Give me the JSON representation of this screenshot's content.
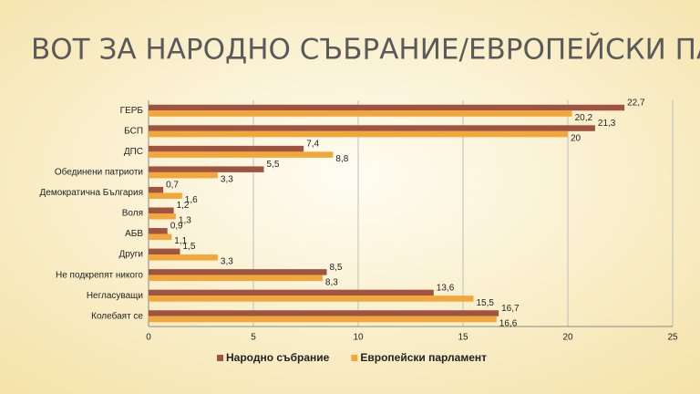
{
  "chart_data": {
    "type": "bar",
    "orientation": "horizontal",
    "title": "ВОТ ЗА НАРОДНО СЪБРАНИЕ/ЕВРОПЕЙСКИ ПАРЛАМЕНТ",
    "categories": [
      "ГЕРБ",
      "БСП",
      "ДПС",
      "Обединени патриоти",
      "Демократична България",
      "Воля",
      "АБВ",
      "Други",
      "Не подкрепят никого",
      "Негласуващи",
      "Колебаят се"
    ],
    "series": [
      {
        "name": "Народно събрание",
        "color": "#9e5440",
        "values": [
          22.7,
          21.3,
          7.4,
          5.5,
          0.7,
          1.2,
          0.9,
          1.5,
          8.5,
          13.6,
          16.7
        ],
        "value_labels": [
          "22,7",
          "21,3",
          "7,4",
          "5,5",
          "0,7",
          "1,2",
          "0,9",
          "1,5",
          "8,5",
          "13,6",
          "16,7"
        ]
      },
      {
        "name": "Европейски парламент",
        "color": "#f2a73b",
        "values": [
          20.2,
          20,
          8.8,
          3.3,
          1.6,
          1.3,
          1.1,
          3.3,
          8.3,
          15.5,
          16.6
        ],
        "value_labels": [
          "20,2",
          "20",
          "8,8",
          "3,3",
          "1,6",
          "1,3",
          "1,1",
          "3,3",
          "8,3",
          "15,5",
          "16,6"
        ]
      }
    ],
    "xlim": [
      0,
      25
    ],
    "xticks": [
      0,
      5,
      10,
      15,
      20,
      25
    ],
    "grid": true,
    "legend": "bottom"
  }
}
